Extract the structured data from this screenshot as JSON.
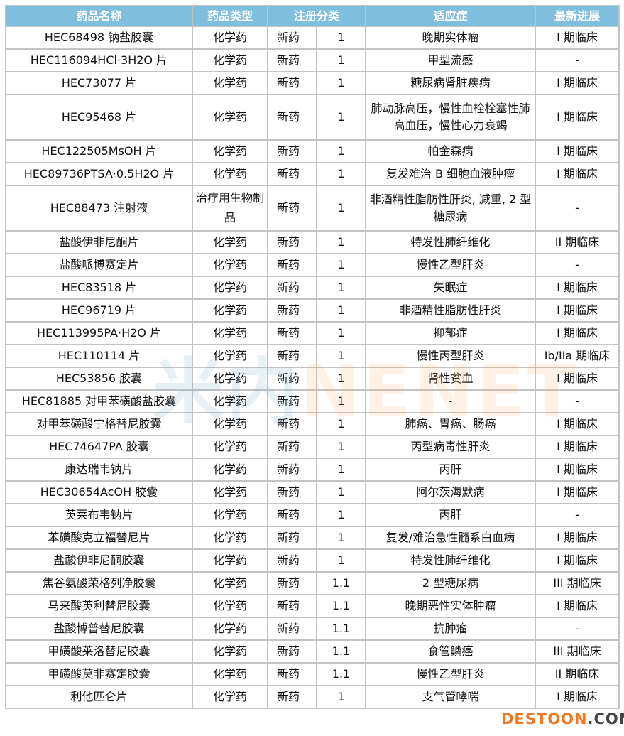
{
  "headers": [
    "药品名称",
    "药品类型",
    "注册分类",
    "适应症",
    "最新进展"
  ],
  "rows": [
    [
      "HEC68498 钠盐胶囊",
      "化学药",
      "新药",
      "1",
      "晚期实体瘤",
      "I 期临床"
    ],
    [
      "HEC116094HCl·3H2O 片",
      "化学药",
      "新药",
      "1",
      "甲型流感",
      "-"
    ],
    [
      "HEC73077 片",
      "化学药",
      "新药",
      "1",
      "糖尿病肾脏疾病",
      "I 期临床"
    ],
    [
      "HEC95468 片",
      "化学药",
      "新药",
      "1",
      "肺动脉高压，慢性血栓栓塞性肺高血压，慢性心力衰竭",
      "I 期临床"
    ],
    [
      "HEC122505MsOH 片",
      "化学药",
      "新药",
      "1",
      "帕金森病",
      "I 期临床"
    ],
    [
      "HEC89736PTSA·0.5H2O 片",
      "化学药",
      "新药",
      "1",
      "复发难治 B 细胞血液肿瘤",
      "I 期临床"
    ],
    [
      "HEC88473 注射液",
      "治疗用生物制品",
      "新药",
      "1",
      "非酒精性脂肪性肝炎, 减重, 2 型糖尿病",
      "-"
    ],
    [
      "盐酸伊非尼酮片",
      "化学药",
      "新药",
      "1",
      "特发性肺纤维化",
      "II 期临床"
    ],
    [
      "盐酸哌博赛定片",
      "化学药",
      "新药",
      "1",
      "慢性乙型肝炎",
      "-"
    ],
    [
      "HEC83518 片",
      "化学药",
      "新药",
      "1",
      "失眠症",
      "I 期临床"
    ],
    [
      "HEC96719 片",
      "化学药",
      "新药",
      "1",
      "非酒精性脂肪性肝炎",
      "I 期临床"
    ],
    [
      "HEC113995PA·H2O 片",
      "化学药",
      "新药",
      "1",
      "抑郁症",
      "I 期临床"
    ],
    [
      "HEC110114 片",
      "化学药",
      "新药",
      "1",
      "慢性丙型肝炎",
      "Ib/IIa 期临床"
    ],
    [
      "HEC53856 胶囊",
      "化学药",
      "新药",
      "1",
      "肾性贫血",
      "I 期临床"
    ],
    [
      "HEC81885 对甲苯磺酸盐胶囊",
      "化学药",
      "新药",
      "1",
      "-",
      "-"
    ],
    [
      "对甲苯磺酸宁格替尼胶囊",
      "化学药",
      "新药",
      "1",
      "肺癌、胃癌、肠癌",
      "I 期临床"
    ],
    [
      "HEC74647PA 胶囊",
      "化学药",
      "新药",
      "1",
      "丙型病毒性肝炎",
      "I 期临床"
    ],
    [
      "康达瑞韦钠片",
      "化学药",
      "新药",
      "1",
      "丙肝",
      "I 期临床"
    ],
    [
      "HEC30654AcOH 胶囊",
      "化学药",
      "新药",
      "1",
      "阿尔茨海默病",
      "I 期临床"
    ],
    [
      "英莱布韦钠片",
      "化学药",
      "新药",
      "1",
      "丙肝",
      "-"
    ],
    [
      "苯磺酸克立福替尼片",
      "化学药",
      "新药",
      "1",
      "复发/难治急性髓系白血病",
      "I 期临床"
    ],
    [
      "盐酸伊非尼酮胶囊",
      "化学药",
      "新药",
      "1",
      "特发性肺纤维化",
      "I 期临床"
    ],
    [
      "焦谷氨酸荣格列净胶囊",
      "化学药",
      "新药",
      "1.1",
      "2 型糖尿病",
      "III 期临床"
    ],
    [
      "马来酸英利替尼胶囊",
      "化学药",
      "新药",
      "1.1",
      "晚期恶性实体肿瘤",
      "I 期临床"
    ],
    [
      "盐酸博普替尼胶囊",
      "化学药",
      "新药",
      "1.1",
      "抗肿瘤",
      "-"
    ],
    [
      "甲磺酸莱洛替尼胶囊",
      "化学药",
      "新药",
      "1.1",
      "食管鳞癌",
      "III 期临床"
    ],
    [
      "甲磺酸莫非赛定胶囊",
      "化学药",
      "新药",
      "1.1",
      "慢性乙型肝炎",
      "II 期临床"
    ],
    [
      "利他匹仑片",
      "化学药",
      "新药",
      "1",
      "支气管哮喘",
      "I 期临床"
    ]
  ],
  "double_rows": [
    3,
    6
  ],
  "watermark": {
    "left": "米内",
    "right": "NENET"
  },
  "corner_watermark": {
    "left": "DESTOON",
    "right": ".COM"
  },
  "colors": {
    "header_bg": "#7fbfdd",
    "header_text": "#ffffff",
    "border": "#c3c3c3"
  }
}
